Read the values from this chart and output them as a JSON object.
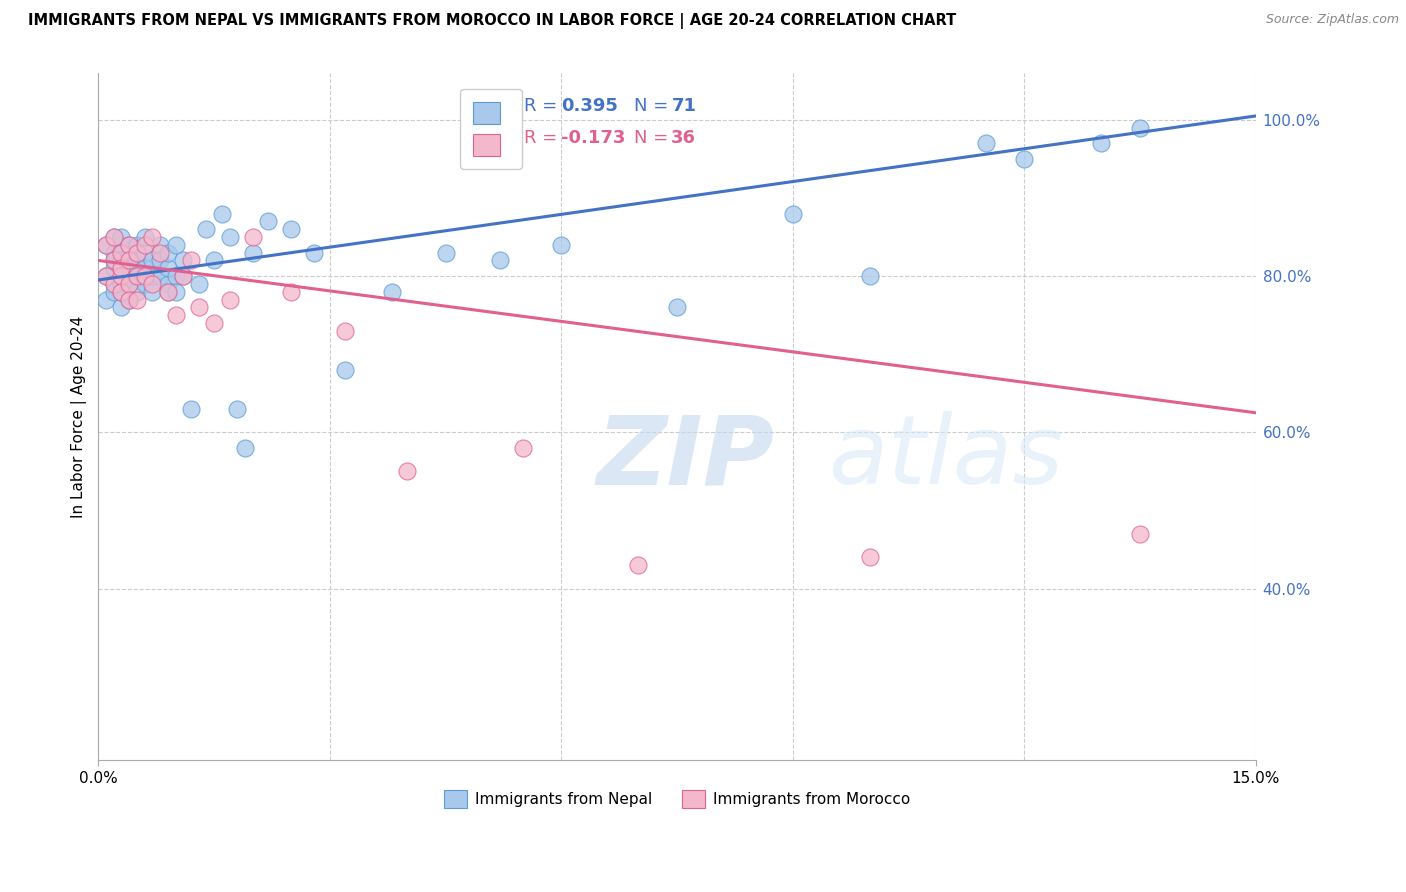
{
  "title": "IMMIGRANTS FROM NEPAL VS IMMIGRANTS FROM MOROCCO IN LABOR FORCE | AGE 20-24 CORRELATION CHART",
  "source": "Source: ZipAtlas.com",
  "ylabel": "In Labor Force | Age 20-24",
  "xlim": [
    0.0,
    0.15
  ],
  "ylim": [
    0.18,
    1.06
  ],
  "ytick_values_right": [
    1.0,
    0.8,
    0.6,
    0.4
  ],
  "nepal_color": "#A8C8EC",
  "nepal_edge": "#5B9BD5",
  "morocco_color": "#F4B8CC",
  "morocco_edge": "#E06090",
  "trend_nepal_color": "#4472C4",
  "trend_morocco_color": "#E06090",
  "nepal_R": 0.395,
  "nepal_N": 71,
  "morocco_R": -0.173,
  "morocco_N": 36,
  "watermark_zip": "ZIP",
  "watermark_atlas": "atlas",
  "background_color": "#FFFFFF",
  "grid_color": "#CCCCCC",
  "nepal_trend_x0": 0.0,
  "nepal_trend_y0": 0.795,
  "nepal_trend_x1": 0.15,
  "nepal_trend_y1": 1.005,
  "morocco_trend_x0": 0.0,
  "morocco_trend_y0": 0.82,
  "morocco_trend_x1": 0.15,
  "morocco_trend_y1": 0.625,
  "nepal_x": [
    0.001,
    0.001,
    0.001,
    0.002,
    0.002,
    0.002,
    0.002,
    0.002,
    0.002,
    0.003,
    0.003,
    0.003,
    0.003,
    0.003,
    0.003,
    0.003,
    0.003,
    0.004,
    0.004,
    0.004,
    0.004,
    0.004,
    0.004,
    0.005,
    0.005,
    0.005,
    0.005,
    0.005,
    0.006,
    0.006,
    0.006,
    0.006,
    0.007,
    0.007,
    0.007,
    0.008,
    0.008,
    0.008,
    0.009,
    0.009,
    0.009,
    0.009,
    0.01,
    0.01,
    0.01,
    0.011,
    0.011,
    0.012,
    0.013,
    0.014,
    0.015,
    0.016,
    0.017,
    0.018,
    0.019,
    0.02,
    0.022,
    0.025,
    0.028,
    0.032,
    0.038,
    0.045,
    0.052,
    0.06,
    0.075,
    0.09,
    0.1,
    0.115,
    0.12,
    0.13,
    0.135
  ],
  "nepal_y": [
    0.8,
    0.84,
    0.77,
    0.82,
    0.79,
    0.85,
    0.81,
    0.78,
    0.83,
    0.8,
    0.84,
    0.76,
    0.82,
    0.79,
    0.85,
    0.81,
    0.78,
    0.8,
    0.83,
    0.77,
    0.84,
    0.81,
    0.79,
    0.82,
    0.8,
    0.84,
    0.78,
    0.81,
    0.83,
    0.79,
    0.85,
    0.81,
    0.8,
    0.82,
    0.78,
    0.84,
    0.8,
    0.82,
    0.79,
    0.81,
    0.78,
    0.83,
    0.8,
    0.84,
    0.78,
    0.82,
    0.8,
    0.63,
    0.79,
    0.86,
    0.82,
    0.88,
    0.85,
    0.63,
    0.58,
    0.83,
    0.87,
    0.86,
    0.83,
    0.68,
    0.78,
    0.83,
    0.82,
    0.84,
    0.76,
    0.88,
    0.8,
    0.97,
    0.95,
    0.97,
    0.99
  ],
  "morocco_x": [
    0.001,
    0.001,
    0.002,
    0.002,
    0.002,
    0.003,
    0.003,
    0.003,
    0.003,
    0.004,
    0.004,
    0.004,
    0.004,
    0.005,
    0.005,
    0.005,
    0.006,
    0.006,
    0.007,
    0.007,
    0.008,
    0.009,
    0.01,
    0.011,
    0.012,
    0.013,
    0.015,
    0.017,
    0.02,
    0.025,
    0.032,
    0.04,
    0.055,
    0.07,
    0.1,
    0.135
  ],
  "morocco_y": [
    0.8,
    0.84,
    0.82,
    0.79,
    0.85,
    0.8,
    0.83,
    0.78,
    0.81,
    0.84,
    0.79,
    0.82,
    0.77,
    0.83,
    0.8,
    0.77,
    0.84,
    0.8,
    0.85,
    0.79,
    0.83,
    0.78,
    0.75,
    0.8,
    0.82,
    0.76,
    0.74,
    0.77,
    0.85,
    0.78,
    0.73,
    0.55,
    0.58,
    0.43,
    0.44,
    0.47
  ]
}
